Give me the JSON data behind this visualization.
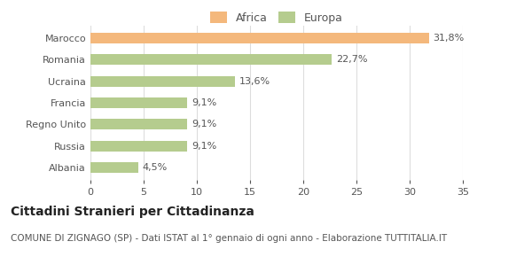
{
  "categories": [
    "Albania",
    "Russia",
    "Regno Unito",
    "Francia",
    "Ucraina",
    "Romania",
    "Marocco"
  ],
  "values": [
    4.5,
    9.1,
    9.1,
    9.1,
    13.6,
    22.7,
    31.8
  ],
  "labels": [
    "4,5%",
    "9,1%",
    "9,1%",
    "9,1%",
    "13,6%",
    "22,7%",
    "31,8%"
  ],
  "colors": [
    "#b5cc8e",
    "#b5cc8e",
    "#b5cc8e",
    "#b5cc8e",
    "#b5cc8e",
    "#b5cc8e",
    "#f4b87c"
  ],
  "legend_labels": [
    "Africa",
    "Europa"
  ],
  "legend_colors": [
    "#f4b87c",
    "#b5cc8e"
  ],
  "xlim": [
    0,
    35
  ],
  "xticks": [
    0,
    5,
    10,
    15,
    20,
    25,
    30,
    35
  ],
  "title": "Cittadini Stranieri per Cittadinanza",
  "subtitle": "COMUNE DI ZIGNAGO (SP) - Dati ISTAT al 1° gennaio di ogni anno - Elaborazione TUTTITALIA.IT",
  "background_color": "#ffffff",
  "bar_height": 0.5,
  "title_fontsize": 10,
  "subtitle_fontsize": 7.5,
  "label_fontsize": 8,
  "tick_fontsize": 8,
  "legend_fontsize": 9
}
